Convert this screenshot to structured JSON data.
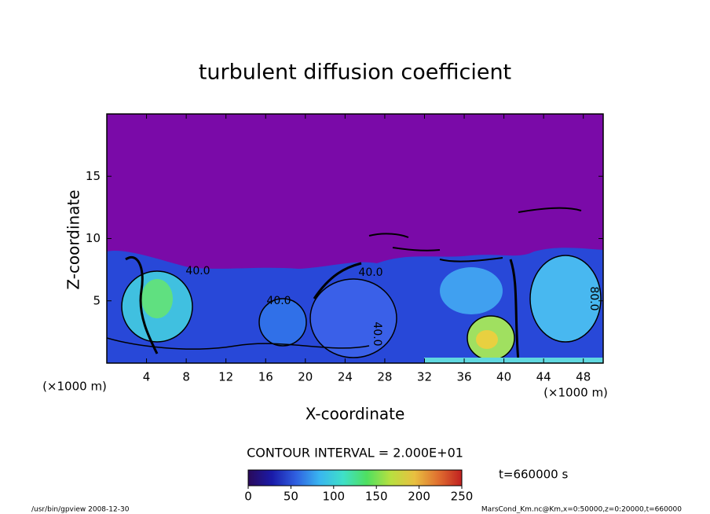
{
  "chart_data": {
    "type": "contour",
    "title": "turbulent diffusion coefficient",
    "x_label": "X-coordinate",
    "y_label": "Z-coordinate",
    "x_unit": "(×1000 m)",
    "y_unit": "(×1000 m)",
    "xlim": [
      0,
      50
    ],
    "xticks": [
      4,
      8,
      12,
      16,
      20,
      24,
      28,
      32,
      36,
      40,
      44,
      48
    ],
    "ylim": [
      0,
      20
    ],
    "yticks": [
      5,
      10,
      15
    ],
    "contour_interval": "CONTOUR INTERVAL = 2.000E+01",
    "contour_labels": [
      "40.0",
      "40.0",
      "40.0",
      "40.0",
      "80.0"
    ],
    "colorbar": {
      "lim": [
        0,
        250
      ],
      "ticks": [
        0,
        50,
        100,
        150,
        200,
        250
      ],
      "colors": [
        "#2a0a5a",
        "#1a1aa8",
        "#2f5fe0",
        "#39b5f0",
        "#3fe0c8",
        "#4fe060",
        "#b8e040",
        "#e8c040",
        "#e07030",
        "#c02020"
      ]
    },
    "time_label": "t=660000 s",
    "footer_left": "/usr/bin/gpview   2008-12-30",
    "footer_right": "MarsCond_Km.nc@Km,x=0:50000,z=0:20000,t=660000"
  }
}
